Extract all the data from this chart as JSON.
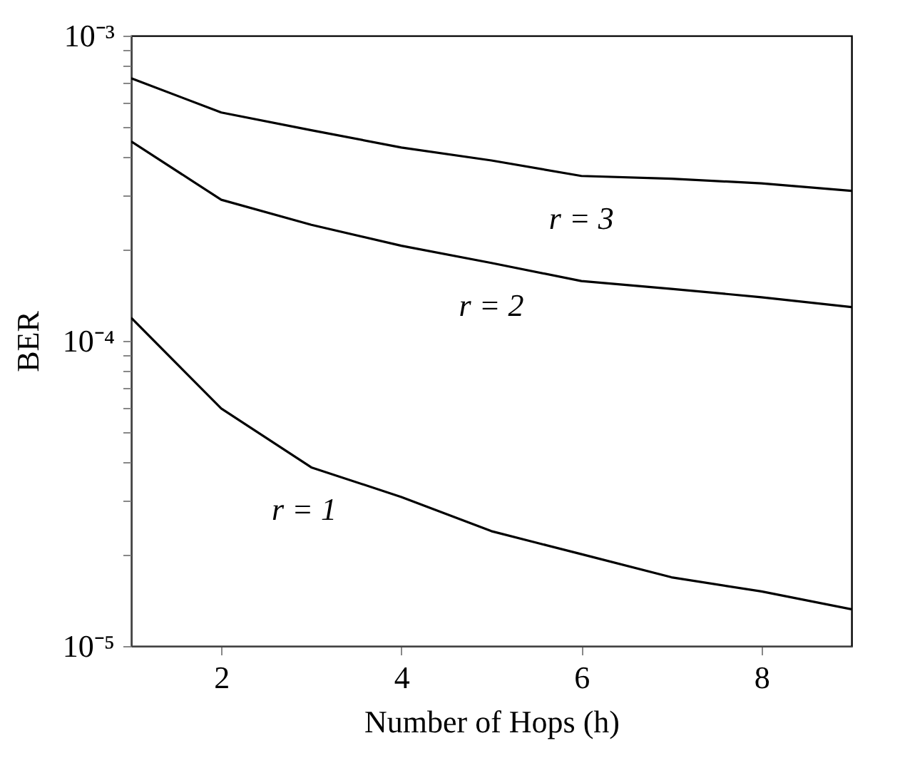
{
  "chart_data": {
    "type": "line",
    "xlabel": "Number of Hops (h)",
    "ylabel": "BER",
    "x": [
      1,
      2,
      3,
      4,
      5,
      6,
      7,
      8,
      9
    ],
    "series": [
      {
        "name": "r = 3",
        "color": "#000000",
        "values": [
          0.000725,
          0.00056,
          0.00049,
          0.00043,
          0.00039,
          0.000347,
          0.00034,
          0.000328,
          0.00031
        ]
      },
      {
        "name": "r = 2",
        "color": "#000000",
        "values": [
          0.00045,
          0.00029,
          0.00024,
          0.000205,
          0.00018,
          0.000157,
          0.000148,
          0.000139,
          0.000129
        ]
      },
      {
        "name": "r = 1",
        "color": "#000000",
        "values": [
          0.000119,
          6e-05,
          3.85e-05,
          3.08e-05,
          2.38e-05,
          2e-05,
          1.68e-05,
          1.51e-05,
          1.32e-05
        ]
      }
    ],
    "xlim": [
      1,
      9
    ],
    "xticks": [
      2,
      4,
      6,
      8
    ],
    "ylim": [
      1e-05,
      0.001
    ],
    "yticks": [
      {
        "value": 1e-05,
        "label": "10⁻⁵"
      },
      {
        "value": 2e-05,
        "label": null
      },
      {
        "value": 3e-05,
        "label": null
      },
      {
        "value": 4e-05,
        "label": null
      },
      {
        "value": 5e-05,
        "label": null
      },
      {
        "value": 6e-05,
        "label": null
      },
      {
        "value": 7e-05,
        "label": null
      },
      {
        "value": 8e-05,
        "label": null
      },
      {
        "value": 9e-05,
        "label": null
      },
      {
        "value": 0.0001,
        "label": "10⁻⁴"
      },
      {
        "value": 0.0002,
        "label": null
      },
      {
        "value": 0.0003,
        "label": null
      },
      {
        "value": 0.0004,
        "label": null
      },
      {
        "value": 0.0005,
        "label": null
      },
      {
        "value": 0.0006,
        "label": null
      },
      {
        "value": 0.0007,
        "label": null
      },
      {
        "value": 0.0008,
        "label": null
      },
      {
        "value": 0.0009,
        "label": null
      },
      {
        "value": 0.001,
        "label": "10⁻³"
      }
    ],
    "log": "y",
    "grid": false,
    "line_style": "solid"
  }
}
